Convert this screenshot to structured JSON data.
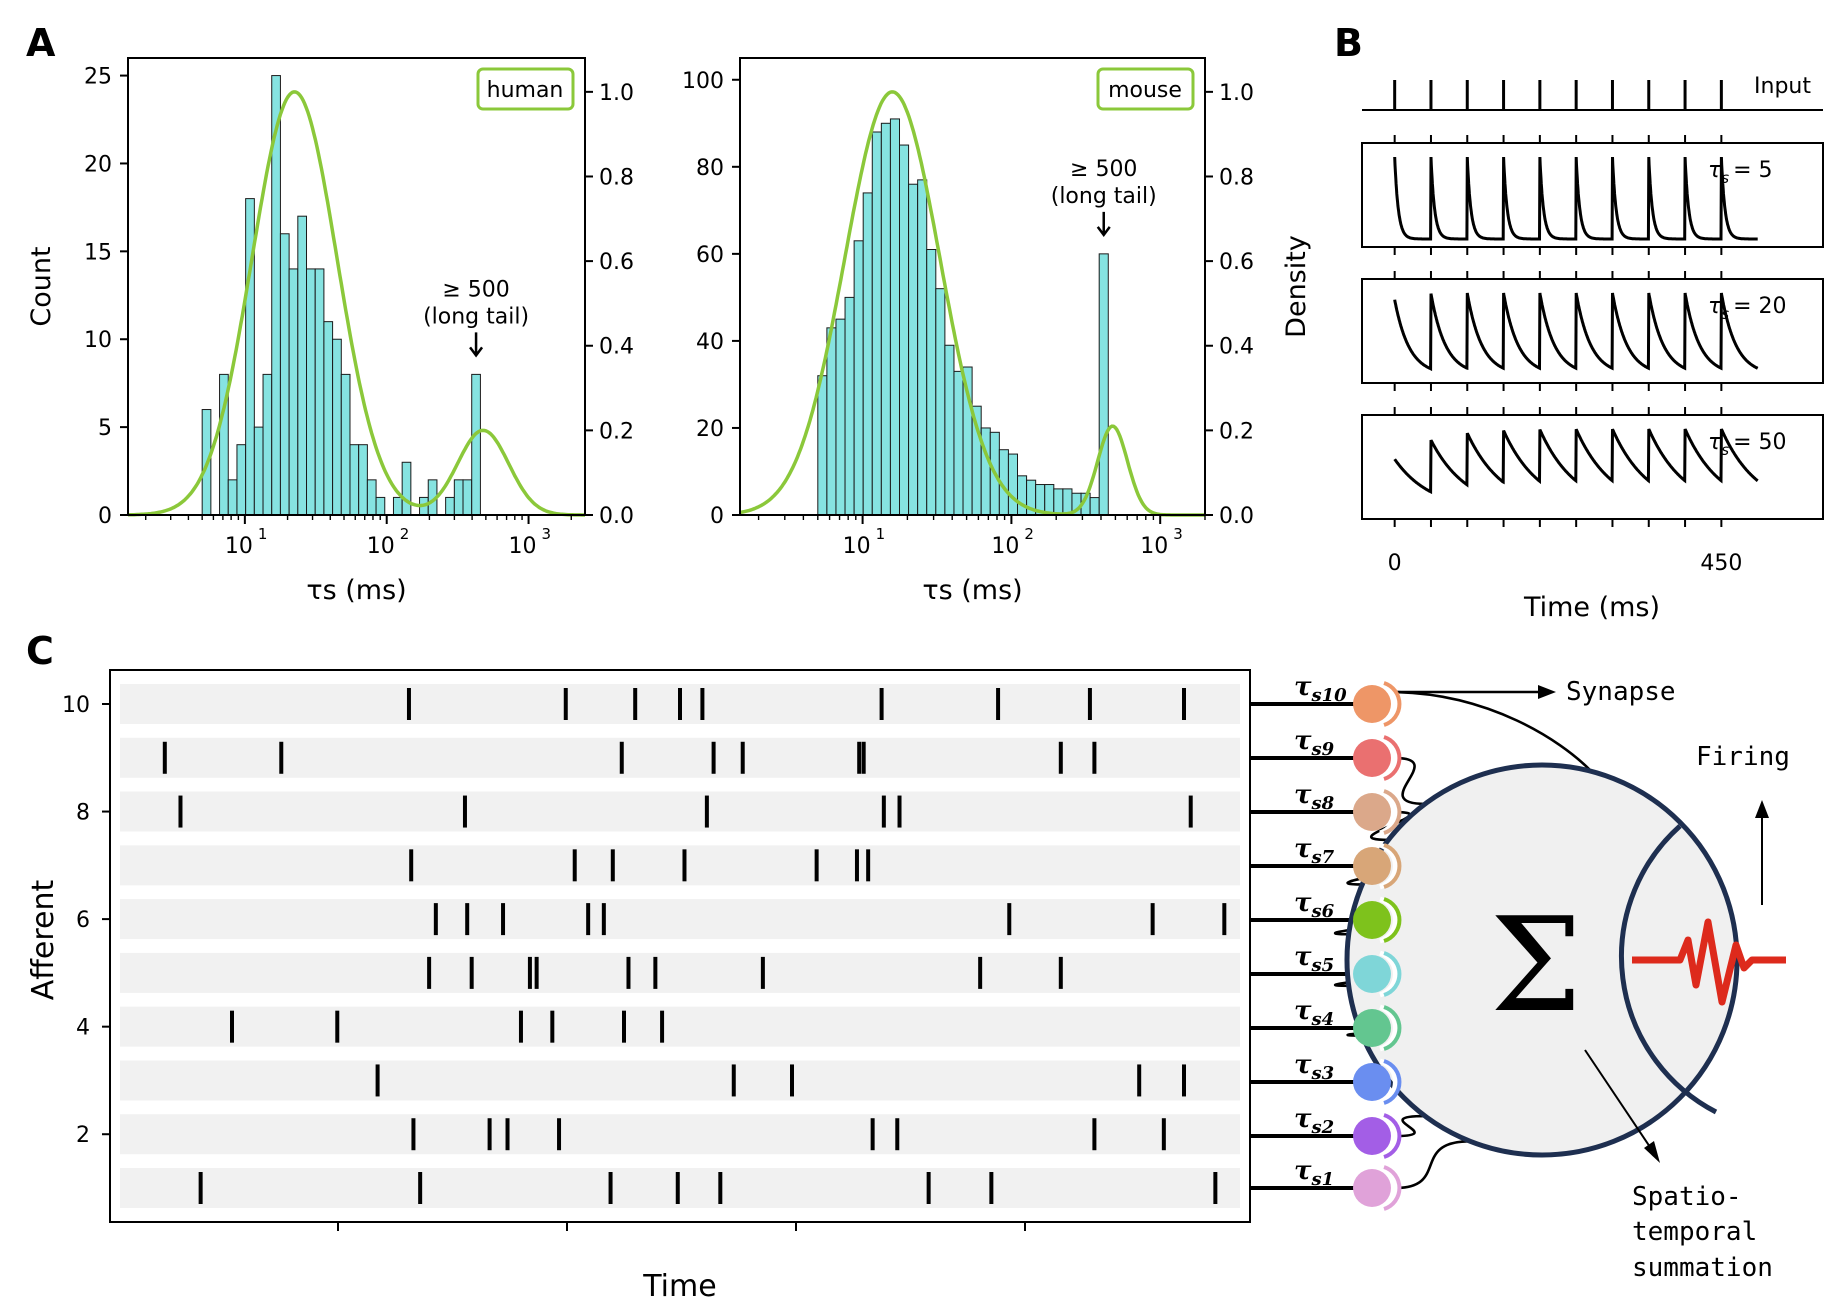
{
  "chart_data": [
    {
      "type": "bar",
      "panel": "A",
      "legend": "human",
      "legend_position": "top-right",
      "xlabel": "τs (ms)",
      "ylabel_left": "Count",
      "ylabel_right": "",
      "xscale": "log",
      "xlim": [
        1.5,
        2500
      ],
      "ylim_left": [
        0,
        26
      ],
      "ylim_right": [
        0,
        1.08
      ],
      "yticks_left": [
        "0",
        "5",
        "10",
        "15",
        "20",
        "25"
      ],
      "yticks_right": [
        "0.0",
        "0.2",
        "0.4",
        "0.6",
        "0.8",
        "1.0"
      ],
      "xticks": [
        "10",
        "10",
        "10"
      ],
      "xtick_exponents": [
        "1",
        "2",
        "3"
      ],
      "bin_log_edges": [
        0.699,
        0.7603,
        0.8216,
        0.8829,
        0.9442,
        1.0055,
        1.0668,
        1.1281,
        1.1894,
        1.2507,
        1.312,
        1.3733,
        1.4346,
        1.4959,
        1.5572,
        1.6185,
        1.6798,
        1.7411,
        1.8024,
        1.8637,
        1.925,
        1.9863,
        2.0476,
        2.1089,
        2.1702,
        2.2315,
        2.2928,
        2.3541,
        2.4154,
        2.4767,
        2.538,
        2.5993,
        2.6606,
        2.7219
      ],
      "values": [
        6,
        0,
        8,
        2,
        4,
        18,
        5,
        8,
        25,
        16,
        14,
        17,
        14,
        14,
        11,
        10,
        8,
        4,
        4,
        2,
        1,
        0,
        1,
        3,
        0,
        1,
        2,
        0,
        1,
        2,
        2,
        8,
        0
      ],
      "density_peaks": [
        {
          "log_center": 1.35,
          "height": 1.0,
          "width": 0.3
        },
        {
          "log_center": 2.68,
          "height": 0.2,
          "width": 0.18
        }
      ],
      "annotation": {
        "text_line1": "≥ 500",
        "text_line2": "(long tail)"
      }
    },
    {
      "type": "bar",
      "panel": "A",
      "legend": "mouse",
      "legend_position": "top-right",
      "xlabel": "τs (ms)",
      "ylabel_left": "",
      "ylabel_right": "Density",
      "xscale": "log",
      "xlim": [
        1.5,
        2000
      ],
      "ylim_left": [
        0,
        105
      ],
      "ylim_right": [
        0,
        1.08
      ],
      "yticks_left": [
        "0",
        "20",
        "40",
        "60",
        "80",
        "100"
      ],
      "yticks_right": [
        "0.0",
        "0.2",
        "0.4",
        "0.6",
        "0.8",
        "1.0"
      ],
      "xticks": [
        "10",
        "10",
        "10"
      ],
      "xtick_exponents": [
        "1",
        "2",
        "3"
      ],
      "bin_log_edges": [
        0.699,
        0.76,
        0.821,
        0.882,
        0.943,
        1.004,
        1.065,
        1.126,
        1.187,
        1.248,
        1.309,
        1.37,
        1.431,
        1.492,
        1.553,
        1.614,
        1.675,
        1.736,
        1.797,
        1.858,
        1.919,
        1.98,
        2.041,
        2.102,
        2.163,
        2.224,
        2.285,
        2.346,
        2.407,
        2.468,
        2.529,
        2.59,
        2.651,
        2.712
      ],
      "values": [
        32,
        43,
        45,
        50,
        63,
        74,
        88,
        90,
        91,
        85,
        76,
        77,
        61,
        52,
        39,
        33,
        34,
        25,
        20,
        19,
        15,
        14,
        9,
        8,
        7,
        7,
        6,
        6,
        5,
        5,
        4,
        60,
        0
      ],
      "density_peaks": [
        {
          "log_center": 1.2,
          "height": 1.0,
          "width": 0.32
        },
        {
          "log_center": 2.68,
          "height": 0.21,
          "width": 0.1
        }
      ],
      "annotation": {
        "text_line1": "≥ 500",
        "text_line2": "(long tail)"
      }
    },
    {
      "type": "line",
      "panel": "B",
      "xlabel": "Time (ms)",
      "xticks": [
        "0",
        "450"
      ],
      "xlim": [
        -45,
        590
      ],
      "spike_times_ms": [
        0,
        50,
        100,
        150,
        200,
        250,
        300,
        350,
        400,
        450
      ],
      "end_time_ms": 500,
      "traces": [
        {
          "label_prefix": "τ",
          "label_sub": "s",
          "label_value": "= 5",
          "tau": 5
        },
        {
          "label_prefix": "τ",
          "label_sub": "s",
          "label_value": "= 20",
          "tau": 20
        },
        {
          "label_prefix": "τ",
          "label_sub": "s",
          "label_value": "= 50",
          "tau": 50
        }
      ],
      "input_label": "Input"
    },
    {
      "type": "scatter",
      "panel": "C",
      "xlabel": "Time",
      "ylabel": "Afferent",
      "yticks": [
        "2",
        "4",
        "6",
        "8",
        "10"
      ],
      "xlim": [
        0,
        1
      ],
      "rows": [
        {
          "afferent": 10,
          "spikes": [
            0.258,
            0.398,
            0.46,
            0.5,
            0.52,
            0.68,
            0.784,
            0.866,
            0.95
          ]
        },
        {
          "afferent": 9,
          "spikes": [
            0.04,
            0.144,
            0.448,
            0.53,
            0.556,
            0.66,
            0.664,
            0.84,
            0.87
          ]
        },
        {
          "afferent": 8,
          "spikes": [
            0.054,
            0.308,
            0.524,
            0.682,
            0.696,
            0.956
          ]
        },
        {
          "afferent": 7,
          "spikes": [
            0.26,
            0.406,
            0.44,
            0.504,
            0.622,
            0.658,
            0.668
          ]
        },
        {
          "afferent": 6,
          "spikes": [
            0.282,
            0.31,
            0.342,
            0.418,
            0.432,
            0.794,
            0.922,
            0.986
          ]
        },
        {
          "afferent": 5,
          "spikes": [
            0.276,
            0.314,
            0.366,
            0.372,
            0.454,
            0.478,
            0.574,
            0.768,
            0.84
          ]
        },
        {
          "afferent": 4,
          "spikes": [
            0.1,
            0.194,
            0.358,
            0.386,
            0.45,
            0.484
          ]
        },
        {
          "afferent": 3,
          "spikes": [
            0.23,
            0.548,
            0.6,
            0.91,
            0.95
          ]
        },
        {
          "afferent": 2,
          "spikes": [
            0.262,
            0.33,
            0.346,
            0.392,
            0.672,
            0.694,
            0.87,
            0.932
          ]
        },
        {
          "afferent": 1,
          "spikes": [
            0.072,
            0.268,
            0.438,
            0.498,
            0.536,
            0.722,
            0.778,
            0.978
          ]
        }
      ]
    }
  ],
  "panel_labels": {
    "a": "A",
    "b": "B",
    "c": "C"
  },
  "diagram": {
    "synapses": [
      {
        "label": "τ",
        "sub": "s10",
        "color": "#ee9667"
      },
      {
        "label": "τ",
        "sub": "s9",
        "color": "#ea7070"
      },
      {
        "label": "τ",
        "sub": "s8",
        "color": "#dba88a"
      },
      {
        "label": "τ",
        "sub": "s7",
        "color": "#d8a678"
      },
      {
        "label": "τ",
        "sub": "s6",
        "color": "#7ec21c"
      },
      {
        "label": "τ",
        "sub": "s5",
        "color": "#7fd6d8"
      },
      {
        "label": "τ",
        "sub": "s4",
        "color": "#63c690"
      },
      {
        "label": "τ",
        "sub": "s3",
        "color": "#6a8ef0"
      },
      {
        "label": "τ",
        "sub": "s2",
        "color": "#a35ee6"
      },
      {
        "label": "τ",
        "sub": "s1",
        "color": "#e0a2d9"
      }
    ],
    "synapse_label": "Synapse",
    "firing_label": "Firing",
    "sum_symbol": "Σ",
    "summation_label": [
      "Spatio-",
      "temporal",
      "summation"
    ]
  },
  "colors": {
    "bars": "#86e3e1",
    "density": "#8bc83a",
    "legend_border": "#8bc83a",
    "neuron_border": "#1e2f50",
    "spike_wave": "#dd2a1c",
    "raster_band": "#f1f1f1"
  }
}
